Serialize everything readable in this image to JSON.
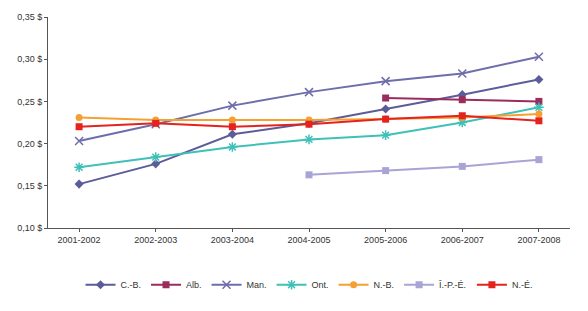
{
  "chart_data": {
    "type": "line",
    "categories": [
      "2001-2002",
      "2002-2003",
      "2003-2004",
      "2004-2005",
      "2005-2006",
      "2006-2007",
      "2007-2008"
    ],
    "series": [
      {
        "name": "C.-B.",
        "color": "#5c5c99",
        "marker": "diamond",
        "values": [
          0.152,
          0.176,
          0.211,
          0.224,
          0.241,
          0.258,
          0.276
        ]
      },
      {
        "name": "Alb.",
        "color": "#9a2d5c",
        "marker": "square",
        "values": [
          null,
          null,
          null,
          null,
          0.254,
          0.252,
          0.25
        ]
      },
      {
        "name": "Man.",
        "color": "#6e6eaa",
        "marker": "x",
        "values": [
          0.203,
          0.223,
          0.245,
          0.261,
          0.274,
          0.283,
          0.303
        ]
      },
      {
        "name": "Ont.",
        "color": "#40c0b8",
        "marker": "star",
        "values": [
          0.172,
          0.184,
          0.196,
          0.205,
          0.21,
          0.225,
          0.243
        ]
      },
      {
        "name": "N.-B.",
        "color": "#f5a033",
        "marker": "circle",
        "values": [
          0.231,
          0.228,
          0.228,
          0.228,
          0.229,
          0.231,
          0.235
        ]
      },
      {
        "name": "Î.-P.-É.",
        "color": "#a8a4d6",
        "marker": "square",
        "values": [
          null,
          null,
          null,
          0.163,
          0.168,
          0.173,
          0.181
        ]
      },
      {
        "name": "N.-É.",
        "color": "#e4231e",
        "marker": "square",
        "values": [
          0.22,
          0.224,
          0.22,
          0.223,
          0.229,
          0.233,
          0.227
        ]
      }
    ],
    "ylim": [
      0.1,
      0.35
    ],
    "yticks": [
      {
        "value": 0.1,
        "label": "0,10 $"
      },
      {
        "value": 0.15,
        "label": "0,15 $"
      },
      {
        "value": 0.2,
        "label": "0,20 $"
      },
      {
        "value": 0.25,
        "label": "0,25 $"
      },
      {
        "value": 0.3,
        "label": "0,30 $"
      },
      {
        "value": 0.35,
        "label": "0,35 $"
      }
    ],
    "grid": false,
    "legend": "bottom"
  }
}
